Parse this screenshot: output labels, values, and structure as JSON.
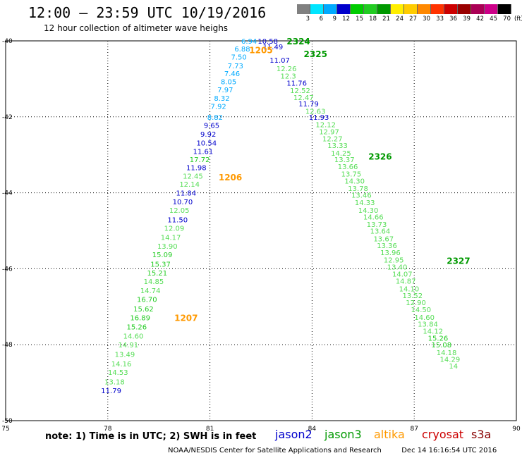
{
  "title": "12:00 – 23:59 UTC 10/19/2016",
  "subtitle": "12 hour collection of altimeter wave heighs",
  "color_scale": {
    "labels": [
      "3",
      "6",
      "9",
      "12",
      "15",
      "18",
      "21",
      "24",
      "27",
      "30",
      "33",
      "36",
      "39",
      "42",
      "45",
      "70"
    ],
    "unit": "(ft)",
    "colors": [
      "#808080",
      "#00e5ff",
      "#00aaff",
      "#0000cc",
      "#00cc00",
      "#22cc22",
      "#009900",
      "#ffee00",
      "#ffcc00",
      "#ff8800",
      "#ff3300",
      "#cc0000",
      "#990000",
      "#aa0055",
      "#cc0088",
      "#000000"
    ]
  },
  "note": "note:  1) Time is in UTC;  2) SWH is in feet",
  "satellites": [
    {
      "name": "jason2",
      "color": "#0000cc"
    },
    {
      "name": "jason3",
      "color": "#009900"
    },
    {
      "name": "altika",
      "color": "#ff9900"
    },
    {
      "name": "cryosat",
      "color": "#cc0000"
    },
    {
      "name": "s3a",
      "color": "#880000"
    }
  ],
  "footer_left": "NOAA/NESDIS Center for Satellite Applications and Research",
  "footer_right": "Dec 14 16:16:54 UTC 2016",
  "chart_data": {
    "type": "scatter",
    "x_ticks": [
      "75",
      "78",
      "81",
      "84",
      "87",
      "90"
    ],
    "y_ticks": [
      "-40",
      "-42",
      "-44",
      "-46",
      "-48",
      "-50"
    ],
    "xlim": [
      75,
      90
    ],
    "ylim": [
      -50,
      -40
    ],
    "grid": true,
    "time_labels": [
      {
        "text": "2324",
        "lon": 83.6,
        "lat": -40.02,
        "color": "#009900"
      },
      {
        "text": "2325",
        "lon": 84.1,
        "lat": -40.35,
        "color": "#009900"
      },
      {
        "text": "2326",
        "lon": 86.0,
        "lat": -43.05,
        "color": "#009900"
      },
      {
        "text": "2327",
        "lon": 88.3,
        "lat": -45.8,
        "color": "#009900"
      },
      {
        "text": "1205",
        "lon": 82.5,
        "lat": -40.25,
        "color": "#ff9900"
      },
      {
        "text": "1206",
        "lon": 81.6,
        "lat": -43.6,
        "color": "#ff9900"
      },
      {
        "text": "1207",
        "lon": 80.3,
        "lat": -47.3,
        "color": "#ff9900"
      }
    ],
    "swh_points": [
      {
        "text": "6.94",
        "lon": 82.15,
        "lat": -40.0,
        "color": "#00aaff"
      },
      {
        "text": "6.88",
        "lon": 81.95,
        "lat": -40.2,
        "color": "#00aaff"
      },
      {
        "text": "7.50",
        "lon": 81.85,
        "lat": -40.42,
        "color": "#00aaff"
      },
      {
        "text": "7.73",
        "lon": 81.75,
        "lat": -40.65,
        "color": "#00aaff"
      },
      {
        "text": "7.46",
        "lon": 81.65,
        "lat": -40.85,
        "color": "#00aaff"
      },
      {
        "text": "8.05",
        "lon": 81.55,
        "lat": -41.07,
        "color": "#00aaff"
      },
      {
        "text": "7.97",
        "lon": 81.45,
        "lat": -41.28,
        "color": "#00aaff"
      },
      {
        "text": "8.32",
        "lon": 81.35,
        "lat": -41.5,
        "color": "#00aaff"
      },
      {
        "text": "7.92",
        "lon": 81.25,
        "lat": -41.72,
        "color": "#00aaff"
      },
      {
        "text": "8.82",
        "lon": 81.15,
        "lat": -42.0,
        "color": "#00aaff"
      },
      {
        "text": "9.65",
        "lon": 81.05,
        "lat": -42.22,
        "color": "#0000cc"
      },
      {
        "text": "9.92",
        "lon": 80.95,
        "lat": -42.45,
        "color": "#0000cc"
      },
      {
        "text": "10.54",
        "lon": 80.9,
        "lat": -42.68,
        "color": "#0000cc"
      },
      {
        "text": "11.61",
        "lon": 80.8,
        "lat": -42.9,
        "color": "#0000cc"
      },
      {
        "text": "17.72",
        "lon": 80.7,
        "lat": -43.12,
        "color": "#22cc22"
      },
      {
        "text": "11.98",
        "lon": 80.6,
        "lat": -43.33,
        "color": "#0000cc"
      },
      {
        "text": "12.45",
        "lon": 80.5,
        "lat": -43.55,
        "color": "#55dd55"
      },
      {
        "text": "12.14",
        "lon": 80.4,
        "lat": -43.77,
        "color": "#55dd55"
      },
      {
        "text": "11.84",
        "lon": 80.3,
        "lat": -44.0,
        "color": "#0000cc"
      },
      {
        "text": "10.70",
        "lon": 80.2,
        "lat": -44.23,
        "color": "#0000cc"
      },
      {
        "text": "12.05",
        "lon": 80.1,
        "lat": -44.45,
        "color": "#55dd55"
      },
      {
        "text": "11.50",
        "lon": 80.05,
        "lat": -44.7,
        "color": "#0000cc"
      },
      {
        "text": "12.09",
        "lon": 79.95,
        "lat": -44.93,
        "color": "#55dd55"
      },
      {
        "text": "14.17",
        "lon": 79.85,
        "lat": -45.17,
        "color": "#55dd55"
      },
      {
        "text": "13.90",
        "lon": 79.75,
        "lat": -45.4,
        "color": "#55dd55"
      },
      {
        "text": "15.09",
        "lon": 79.6,
        "lat": -45.62,
        "color": "#22cc22"
      },
      {
        "text": "15.37",
        "lon": 79.55,
        "lat": -45.87,
        "color": "#22cc22"
      },
      {
        "text": "15.21",
        "lon": 79.45,
        "lat": -46.1,
        "color": "#22cc22"
      },
      {
        "text": "14.85",
        "lon": 79.35,
        "lat": -46.33,
        "color": "#55dd55"
      },
      {
        "text": "14.74",
        "lon": 79.25,
        "lat": -46.57,
        "color": "#55dd55"
      },
      {
        "text": "16.70",
        "lon": 79.15,
        "lat": -46.8,
        "color": "#22cc22"
      },
      {
        "text": "15.62",
        "lon": 79.05,
        "lat": -47.05,
        "color": "#22cc22"
      },
      {
        "text": "16.89",
        "lon": 78.95,
        "lat": -47.28,
        "color": "#22cc22"
      },
      {
        "text": "15.26",
        "lon": 78.85,
        "lat": -47.52,
        "color": "#22cc22"
      },
      {
        "text": "14.60",
        "lon": 78.75,
        "lat": -47.76,
        "color": "#55dd55"
      },
      {
        "text": "14.91",
        "lon": 78.6,
        "lat": -48.0,
        "color": "#55dd55"
      },
      {
        "text": "13.49",
        "lon": 78.5,
        "lat": -48.25,
        "color": "#55dd55"
      },
      {
        "text": "14.16",
        "lon": 78.4,
        "lat": -48.5,
        "color": "#55dd55"
      },
      {
        "text": "14.53",
        "lon": 78.3,
        "lat": -48.72,
        "color": "#55dd55"
      },
      {
        "text": "13.18",
        "lon": 78.2,
        "lat": -48.97,
        "color": "#55dd55"
      },
      {
        "text": "11.79",
        "lon": 78.1,
        "lat": -49.2,
        "color": "#0000cc"
      },
      {
        "text": "10.58",
        "lon": 82.7,
        "lat": -40.0,
        "color": "#0000cc"
      },
      {
        "text": "11.49",
        "lon": 82.85,
        "lat": -40.15,
        "color": "#0000cc"
      },
      {
        "text": "11.07",
        "lon": 83.05,
        "lat": -40.5,
        "color": "#0000cc"
      },
      {
        "text": "12.26",
        "lon": 83.25,
        "lat": -40.72,
        "color": "#55dd55"
      },
      {
        "text": "12.3",
        "lon": 83.3,
        "lat": -40.92,
        "color": "#55dd55"
      },
      {
        "text": "11.76",
        "lon": 83.55,
        "lat": -41.1,
        "color": "#0000cc"
      },
      {
        "text": "12.52",
        "lon": 83.65,
        "lat": -41.3,
        "color": "#55dd55"
      },
      {
        "text": "12.47",
        "lon": 83.75,
        "lat": -41.48,
        "color": "#55dd55"
      },
      {
        "text": "11.79",
        "lon": 83.9,
        "lat": -41.65,
        "color": "#0000cc"
      },
      {
        "text": "12.63",
        "lon": 84.1,
        "lat": -41.85,
        "color": "#55dd55"
      },
      {
        "text": "11.93",
        "lon": 84.2,
        "lat": -42.0,
        "color": "#0000cc"
      },
      {
        "text": "12.12",
        "lon": 84.4,
        "lat": -42.2,
        "color": "#55dd55"
      },
      {
        "text": "12.97",
        "lon": 84.5,
        "lat": -42.38,
        "color": "#55dd55"
      },
      {
        "text": "12.27",
        "lon": 84.6,
        "lat": -42.57,
        "color": "#55dd55"
      },
      {
        "text": "13.33",
        "lon": 84.75,
        "lat": -42.75,
        "color": "#55dd55"
      },
      {
        "text": "14.25",
        "lon": 84.85,
        "lat": -42.95,
        "color": "#55dd55"
      },
      {
        "text": "13.37",
        "lon": 84.95,
        "lat": -43.12,
        "color": "#55dd55"
      },
      {
        "text": "13.66",
        "lon": 85.05,
        "lat": -43.3,
        "color": "#55dd55"
      },
      {
        "text": "13.75",
        "lon": 85.15,
        "lat": -43.5,
        "color": "#55dd55"
      },
      {
        "text": "14.30",
        "lon": 85.25,
        "lat": -43.68,
        "color": "#55dd55"
      },
      {
        "text": "13.78",
        "lon": 85.35,
        "lat": -43.88,
        "color": "#55dd55"
      },
      {
        "text": "13.46",
        "lon": 85.45,
        "lat": -44.05,
        "color": "#55dd55"
      },
      {
        "text": "14.33",
        "lon": 85.55,
        "lat": -44.25,
        "color": "#55dd55"
      },
      {
        "text": "14.30",
        "lon": 85.65,
        "lat": -44.45,
        "color": "#55dd55"
      },
      {
        "text": "14.66",
        "lon": 85.8,
        "lat": -44.63,
        "color": "#55dd55"
      },
      {
        "text": "13.73",
        "lon": 85.9,
        "lat": -44.82,
        "color": "#55dd55"
      },
      {
        "text": "13.64",
        "lon": 86.0,
        "lat": -45.0,
        "color": "#55dd55"
      },
      {
        "text": "13.67",
        "lon": 86.1,
        "lat": -45.2,
        "color": "#55dd55"
      },
      {
        "text": "13.36",
        "lon": 86.2,
        "lat": -45.38,
        "color": "#55dd55"
      },
      {
        "text": "13.96",
        "lon": 86.3,
        "lat": -45.57,
        "color": "#55dd55"
      },
      {
        "text": "12.95",
        "lon": 86.4,
        "lat": -45.76,
        "color": "#55dd55"
      },
      {
        "text": "13.40",
        "lon": 86.5,
        "lat": -45.95,
        "color": "#55dd55"
      },
      {
        "text": "14.07",
        "lon": 86.65,
        "lat": -46.13,
        "color": "#55dd55"
      },
      {
        "text": "14.87",
        "lon": 86.75,
        "lat": -46.32,
        "color": "#55dd55"
      },
      {
        "text": "14.10",
        "lon": 86.85,
        "lat": -46.52,
        "color": "#55dd55"
      },
      {
        "text": "13.52",
        "lon": 86.95,
        "lat": -46.7,
        "color": "#55dd55"
      },
      {
        "text": "12.90",
        "lon": 87.05,
        "lat": -46.88,
        "color": "#55dd55"
      },
      {
        "text": "14.50",
        "lon": 87.2,
        "lat": -47.07,
        "color": "#55dd55"
      },
      {
        "text": "14.60",
        "lon": 87.3,
        "lat": -47.27,
        "color": "#55dd55"
      },
      {
        "text": "13.84",
        "lon": 87.4,
        "lat": -47.45,
        "color": "#55dd55"
      },
      {
        "text": "14.12",
        "lon": 87.55,
        "lat": -47.63,
        "color": "#55dd55"
      },
      {
        "text": "15.26",
        "lon": 87.7,
        "lat": -47.82,
        "color": "#22cc22"
      },
      {
        "text": "15.08",
        "lon": 87.8,
        "lat": -48.0,
        "color": "#22cc22"
      },
      {
        "text": "14.18",
        "lon": 87.95,
        "lat": -48.2,
        "color": "#55dd55"
      },
      {
        "text": "14.29",
        "lon": 88.05,
        "lat": -48.38,
        "color": "#55dd55"
      },
      {
        "text": "14",
        "lon": 88.15,
        "lat": -48.55,
        "color": "#55dd55"
      }
    ]
  }
}
